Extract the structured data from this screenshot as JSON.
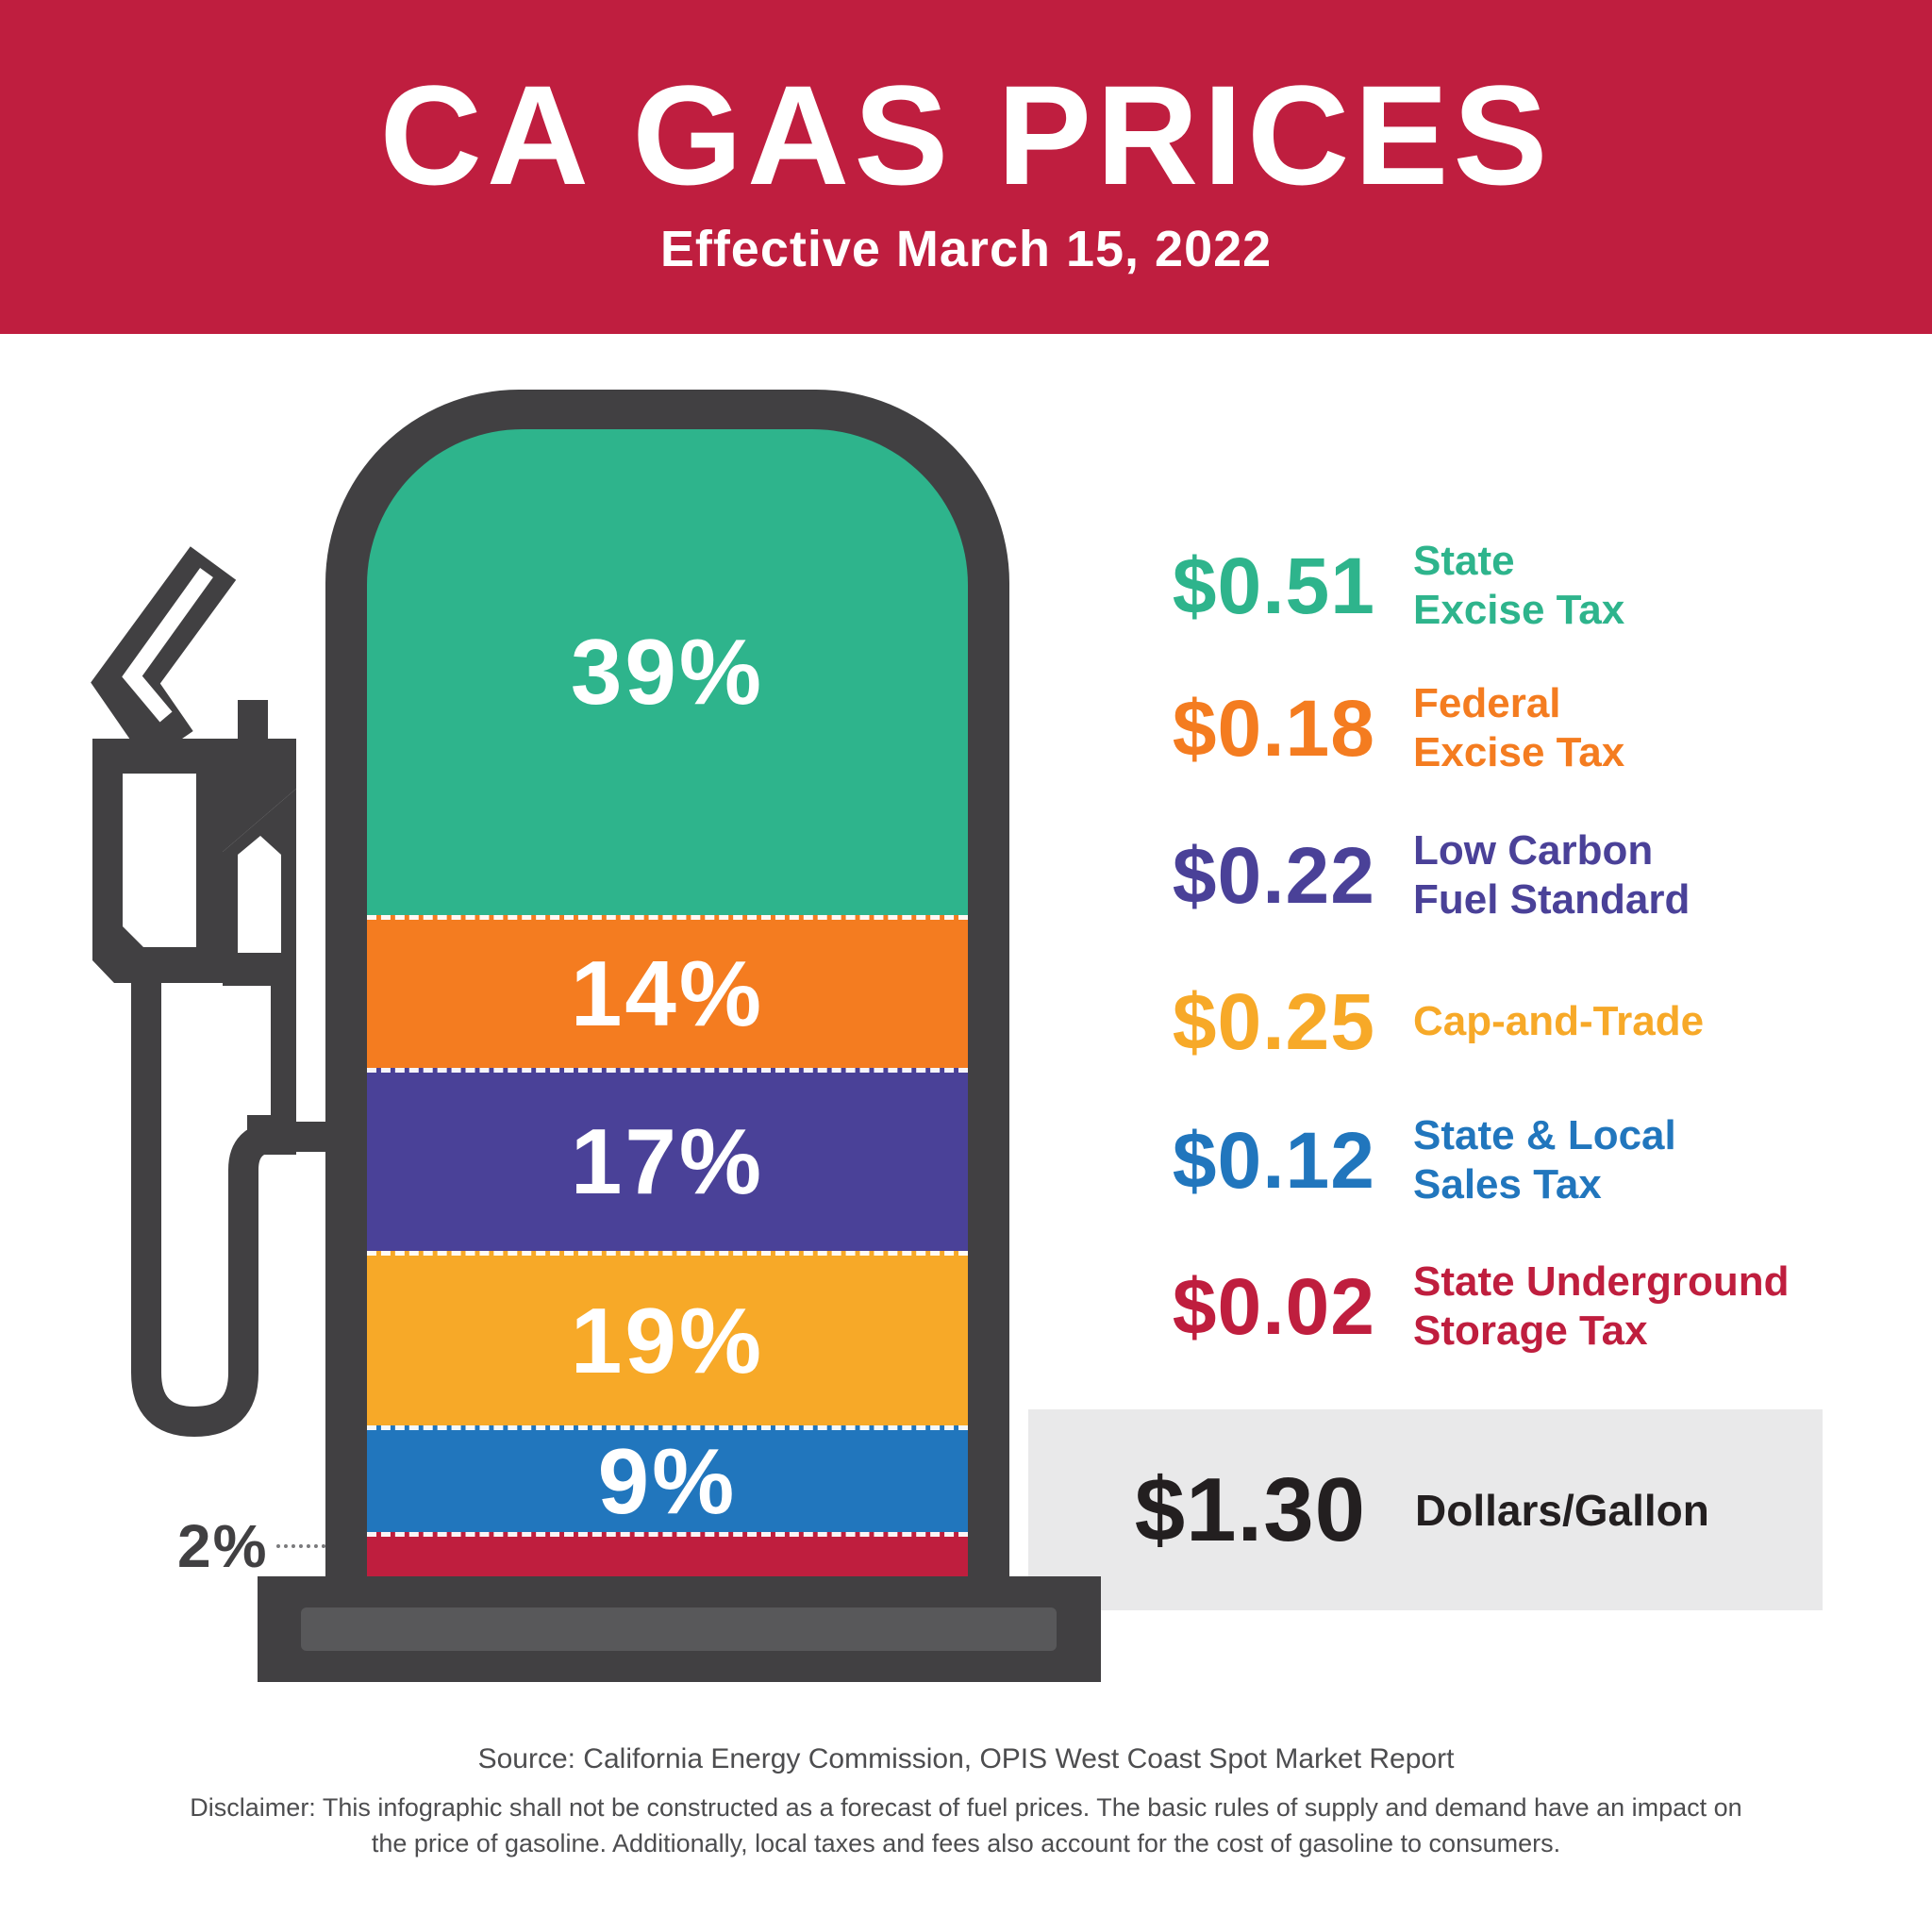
{
  "header": {
    "title": "CA GAS PRICES",
    "subtitle": "Effective March 15, 2022",
    "bg_color": "#bf1e3f",
    "text_color": "#ffffff"
  },
  "chart_data": {
    "type": "bar",
    "title": "CA Gas Prices — tax and fee components per gallon",
    "unit": "dollars per gallon",
    "legend_position": "right",
    "total": {
      "amount": "$1.30",
      "label": "Dollars/Gallon",
      "band_bg": "#e9e9ea",
      "text_color": "#231f20"
    },
    "segments": [
      {
        "name": "State Excise Tax",
        "label_lines": [
          "State",
          "Excise Tax"
        ],
        "amount": "$0.51",
        "value": 0.51,
        "pct": "39%",
        "share": 39,
        "color": "#2eb48c",
        "visual_h": 42.35,
        "label_inside": true
      },
      {
        "name": "Federal Excise Tax",
        "label_lines": [
          "Federal",
          "Excise Tax"
        ],
        "amount": "$0.18",
        "value": 0.18,
        "pct": "14%",
        "share": 14,
        "color": "#f47c20",
        "visual_h": 13.32,
        "label_inside": true
      },
      {
        "name": "Low Carbon Fuel Standard",
        "label_lines": [
          "Low Carbon",
          "Fuel Standard"
        ],
        "amount": "$0.22",
        "value": 0.22,
        "pct": "17%",
        "share": 17,
        "color": "#4a4198",
        "visual_h": 15.95,
        "label_inside": true
      },
      {
        "name": "Cap-and-Trade",
        "label_lines": [
          "Cap-and-Trade"
        ],
        "amount": "$0.25",
        "value": 0.25,
        "pct": "19%",
        "share": 19,
        "color": "#f7a928",
        "visual_h": 15.21,
        "label_inside": true
      },
      {
        "name": "State & Local Sales Tax",
        "label_lines": [
          "State & Local",
          "Sales Tax"
        ],
        "amount": "$0.12",
        "value": 0.12,
        "pct": "9%",
        "share": 9,
        "color": "#2176bd",
        "visual_h": 9.29,
        "label_inside": true
      },
      {
        "name": "State Underground Storage Tax",
        "label_lines": [
          "State Underground",
          "Storage Tax"
        ],
        "amount": "$0.02",
        "value": 0.02,
        "pct": "2%",
        "share": 2,
        "color": "#bf1e3e",
        "visual_h": 3.88,
        "label_inside": false
      }
    ],
    "outside_callout": {
      "pct": "2%",
      "color": "#414042"
    }
  },
  "pump_graphic": {
    "body_color": "#414042",
    "base_inset_color": "#58585a",
    "separator_style": "white dashed",
    "icons": [
      "gas-pump-icon",
      "gas-nozzle-icon"
    ]
  },
  "footer": {
    "source": "Source: California Energy Commission, OPIS West Coast Spot Market Report",
    "disclaimer_lines": [
      "Disclaimer: This infographic shall not be constructed as a forecast of fuel prices. The basic rules of supply and demand have an impact on",
      "the price of gasoline. Additionally, local taxes and fees also account for the cost of gasoline to consumers."
    ],
    "text_color": "#4d4d4f"
  }
}
